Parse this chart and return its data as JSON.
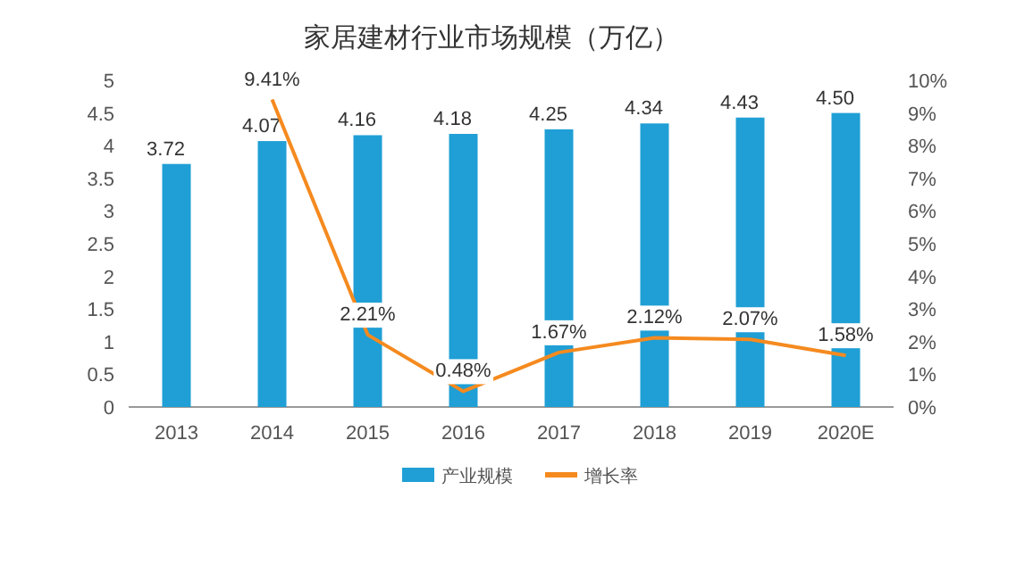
{
  "chart_data": {
    "type": "bar",
    "title": "家居建材行业市场规模（万亿）",
    "categories": [
      "2013",
      "2014",
      "2015",
      "2016",
      "2017",
      "2018",
      "2019",
      "2020E"
    ],
    "series": [
      {
        "name": "产业规模",
        "type": "bar",
        "color": "#1f9fd5",
        "values": [
          3.72,
          4.07,
          4.16,
          4.18,
          4.25,
          4.34,
          4.43,
          4.5
        ],
        "value_labels": [
          "3.72",
          "4.07",
          "4.16",
          "4.18",
          "4.25",
          "4.34",
          "4.43",
          "4.50"
        ]
      },
      {
        "name": "增长率",
        "type": "line",
        "axis": "y2",
        "color": "#f58a1f",
        "values": [
          null,
          9.41,
          2.21,
          0.48,
          1.67,
          2.12,
          2.07,
          1.58
        ],
        "value_labels": [
          null,
          "9.41%",
          "2.21%",
          "0.48%",
          "1.67%",
          "2.12%",
          "2.07%",
          "1.58%"
        ]
      }
    ],
    "ylim": [
      0,
      5
    ],
    "yticks": [
      0,
      0.5,
      1,
      1.5,
      2,
      2.5,
      3,
      3.5,
      4,
      4.5,
      5
    ],
    "y2lim": [
      0,
      10
    ],
    "y2ticks": [
      {
        "value": 0,
        "label": "0%"
      },
      {
        "value": 1,
        "label": "1%"
      },
      {
        "value": 2,
        "label": "2%"
      },
      {
        "value": 3,
        "label": "3%"
      },
      {
        "value": 4,
        "label": "4%"
      },
      {
        "value": 5,
        "label": "5%"
      },
      {
        "value": 6,
        "label": "6%"
      },
      {
        "value": 7,
        "label": "7%"
      },
      {
        "value": 8,
        "label": "8%"
      },
      {
        "value": 9,
        "label": "9%"
      },
      {
        "value": 10,
        "label": "10%"
      }
    ],
    "legend": "bottom"
  }
}
